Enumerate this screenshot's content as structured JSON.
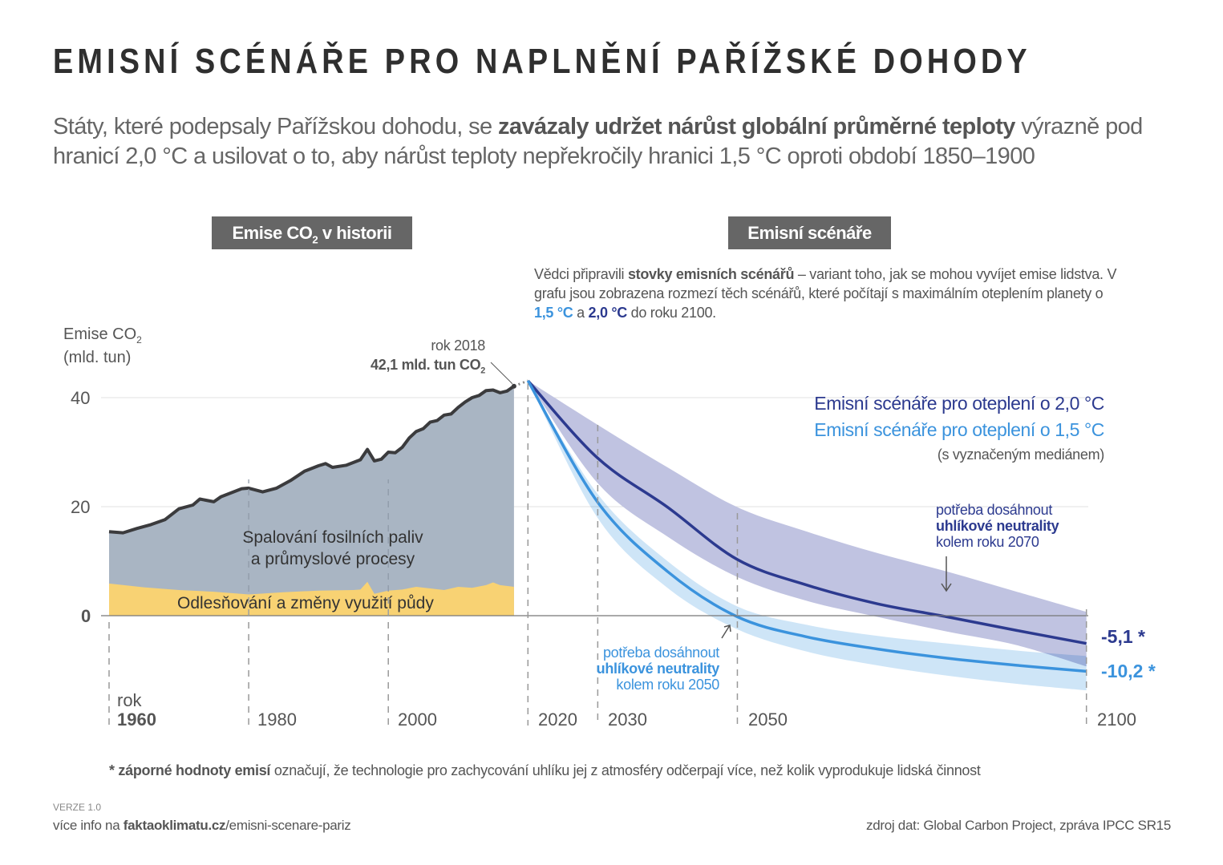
{
  "title": "EMISNÍ SCÉNÁŘE PRO NAPLNĚNÍ PAŘÍŽSKÉ DOHODY",
  "subtitle": {
    "part1": "Státy, které podepsaly Pařížskou dohodu, se ",
    "bold": "zavázaly udržet nárůst globální průměrné teploty",
    "part2": " výrazně pod hranicí 2,0 °C a usilovat o to, aby nárůst teploty nepřekročily hranici 1,5 °C oproti období 1850–1900"
  },
  "sections": {
    "history": {
      "pre": "Emise CO",
      "sub": "2",
      "post": " v historii"
    },
    "scenarios": "Emisní scénáře"
  },
  "scenario_note": {
    "p1": "Vědci připravili ",
    "b1": "stovky emisních scénářů",
    "p2": " – variant toho, jak se mohou vyvíjet emise lidstva. V grafu jsou zobrazena rozmezí těch scénářů, které počítají s maximálním oteplením planety o ",
    "v15": "1,5 °C",
    "p3": " a ",
    "v20": "2,0 °C",
    "p4": " do roku 2100."
  },
  "colors": {
    "fossil": "#a9b5c3",
    "land": "#f8d273",
    "history_line": "#3b3b3d",
    "band20": "#c0c3e1",
    "median20": "#2c3a8f",
    "band15": "#c6e1f6",
    "median15": "#3b93dd",
    "grid": "#e2e2e2"
  },
  "chart_data": {
    "type": "area",
    "ylabel": {
      "pre": "Emise CO",
      "sub": "2",
      "unit": "(mld. tun)"
    },
    "yticks": [
      0,
      20,
      40
    ],
    "ylim": [
      -14,
      44
    ],
    "xlim": [
      1960,
      2100
    ],
    "xticks": [
      {
        "label": "1960",
        "prefix": "rok"
      },
      {
        "label": "1980"
      },
      {
        "label": "2000"
      },
      {
        "label": "2020"
      },
      {
        "label": "2030"
      },
      {
        "label": "2050"
      },
      {
        "label": "2100"
      }
    ],
    "xtick_years": [
      1960,
      1980,
      2000,
      2020,
      2030,
      2050,
      2100
    ],
    "grid": "horizontal",
    "history": {
      "labels": {
        "fossil": [
          "Spalování fosilních paliv",
          "a průmyslové procesy"
        ],
        "land": "Odlesňování a změny využití půdy"
      },
      "total": {
        "years": [
          1960,
          1962,
          1964,
          1966,
          1968,
          1970,
          1972,
          1973,
          1975,
          1976,
          1979,
          1980,
          1982,
          1984,
          1986,
          1988,
          1990,
          1991,
          1992,
          1994,
          1996,
          1997,
          1998,
          1999,
          2000,
          2001,
          2002,
          2003,
          2004,
          2005,
          2006,
          2007,
          2008,
          2009,
          2010,
          2011,
          2012,
          2013,
          2014,
          2015,
          2016,
          2017,
          2018
        ],
        "values": [
          15.4,
          15.2,
          16.0,
          16.7,
          17.6,
          19.6,
          20.3,
          21.4,
          20.9,
          21.8,
          23.3,
          23.4,
          22.7,
          23.4,
          24.8,
          26.5,
          27.5,
          27.9,
          27.2,
          27.6,
          28.6,
          30.5,
          28.4,
          28.7,
          30.0,
          29.9,
          30.9,
          32.6,
          33.8,
          34.3,
          35.5,
          35.8,
          36.8,
          37.0,
          38.2,
          39.2,
          40.0,
          40.4,
          41.3,
          41.4,
          40.9,
          41.2,
          42.1
        ]
      },
      "land": {
        "years": [
          1960,
          1965,
          1970,
          1975,
          1980,
          1985,
          1990,
          1995,
          1996,
          1997,
          1998,
          2000,
          2002,
          2004,
          2006,
          2008,
          2010,
          2012,
          2014,
          2015,
          2016,
          2018
        ],
        "values": [
          5.9,
          5.2,
          4.7,
          4.4,
          3.9,
          4.3,
          4.6,
          4.7,
          4.8,
          6.2,
          4.0,
          4.6,
          4.8,
          5.3,
          5.0,
          4.7,
          5.3,
          5.1,
          5.6,
          6.1,
          5.6,
          5.3
        ]
      },
      "annotation": {
        "year": "rok 2018",
        "value": "42,1 mld. tun CO",
        "sub": "2"
      }
    },
    "scenarios": {
      "years": [
        2020,
        2030,
        2040,
        2050,
        2060,
        2070,
        2080,
        2090,
        2100
      ],
      "s20": {
        "name": "Emisní scénáře pro oteplení o 2,0 °C",
        "median": [
          43.1,
          28.9,
          19.9,
          10.3,
          5.6,
          2.2,
          -0.2,
          -2.7,
          -5.1
        ],
        "upper": [
          43.1,
          35.0,
          27.2,
          19.9,
          15.4,
          11.5,
          8.1,
          4.4,
          0.7
        ],
        "lower": [
          43.1,
          24.3,
          14.5,
          7.1,
          2.7,
          -0.2,
          -2.9,
          -5.4,
          -9.3
        ],
        "end_label": "-5,1 *"
      },
      "s15": {
        "name": "Emisní scénáře pro oteplení o 1,5 °C",
        "median": [
          43.1,
          20.8,
          8.1,
          -0.2,
          -3.9,
          -6.1,
          -7.8,
          -9.1,
          -10.2
        ],
        "upper": [
          43.1,
          22.3,
          10.0,
          1.7,
          -1.7,
          -3.7,
          -5.1,
          -6.4,
          -7.4
        ],
        "lower": [
          43.1,
          17.9,
          5.1,
          -2.5,
          -6.6,
          -9.1,
          -11.0,
          -12.5,
          -13.7
        ],
        "end_label": "-10,2 *"
      },
      "legend_note": "(s vyznačeným mediánem)",
      "neutral20": {
        "l1": "potřeba dosáhnout",
        "l2": "uhlíkové neutrality",
        "l3": "kolem roku 2070"
      },
      "neutral15": {
        "l1": "potřeba dosáhnout",
        "l2": "uhlíkové neutrality",
        "l3": "kolem roku 2050"
      }
    }
  },
  "footnote": {
    "bold": "* záporné hodnoty emisí",
    "text": " označují, že technologie pro zachycování uhlíku jej z atmosféry odčerpají více, než kolik vyprodukuje lidská činnost"
  },
  "footer": {
    "version": "VERZE 1.0",
    "more_pre": "více info na ",
    "more_bold": "faktaoklimatu.cz",
    "more_post": "/emisni-scenare-pariz",
    "source": "zdroj dat: Global Carbon Project, zpráva IPCC SR15"
  }
}
